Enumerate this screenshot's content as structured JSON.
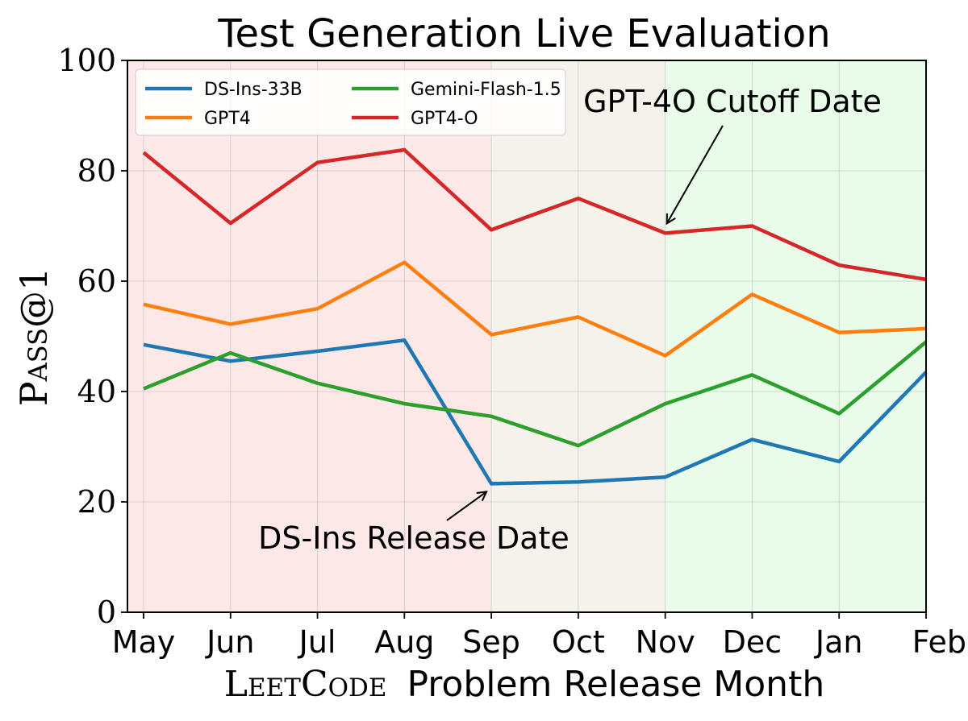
{
  "chart_data": {
    "type": "line",
    "title": "Test Generation Live Evaluation",
    "ylabel": "Pass@1",
    "xlabel_prefix": "LeetCode",
    "xlabel_suffix": "Problem Release Month",
    "categories": [
      "May",
      "Jun",
      "Jul",
      "Aug",
      "Sep",
      "Oct",
      "Nov",
      "Dec",
      "Jan",
      "Feb"
    ],
    "ylim": [
      0,
      100
    ],
    "yticks": [
      0,
      20,
      40,
      60,
      80,
      100
    ],
    "grid": true,
    "legend_position": "top-left",
    "series": [
      {
        "name": "DS-Ins-33B",
        "color": "#1f77b4",
        "values": [
          48.5,
          45.5,
          47.3,
          49.3,
          23.3,
          23.6,
          24.5,
          31.3,
          27.3,
          43.5
        ]
      },
      {
        "name": "GPT4",
        "color": "#ff7f0e",
        "values": [
          55.8,
          52.2,
          55.0,
          63.4,
          50.3,
          53.5,
          46.5,
          57.6,
          50.7,
          51.4
        ]
      },
      {
        "name": "Gemini-Flash-1.5",
        "color": "#2ca02c",
        "values": [
          40.5,
          47.0,
          41.5,
          37.8,
          35.5,
          30.2,
          37.8,
          43.0,
          36.0,
          49.0
        ]
      },
      {
        "name": "GPT4-O",
        "color": "#d62728",
        "values": [
          83.3,
          70.5,
          81.5,
          83.8,
          69.3,
          75.0,
          68.7,
          70.0,
          62.9,
          60.3
        ]
      }
    ],
    "regions": [
      {
        "from": "May",
        "to": "Sep",
        "color": "#fde8e8"
      },
      {
        "from": "Sep",
        "to": "Nov",
        "color": "#f5f2ec"
      },
      {
        "from": "Nov",
        "to": "Feb",
        "color": "#e9fce9"
      }
    ],
    "annotations": [
      {
        "text": "GPT-4O Cutoff Date",
        "category": "Nov",
        "value": 68.7
      },
      {
        "text": "DS-Ins Release Date",
        "category": "Sep",
        "value": 23.3
      }
    ]
  }
}
